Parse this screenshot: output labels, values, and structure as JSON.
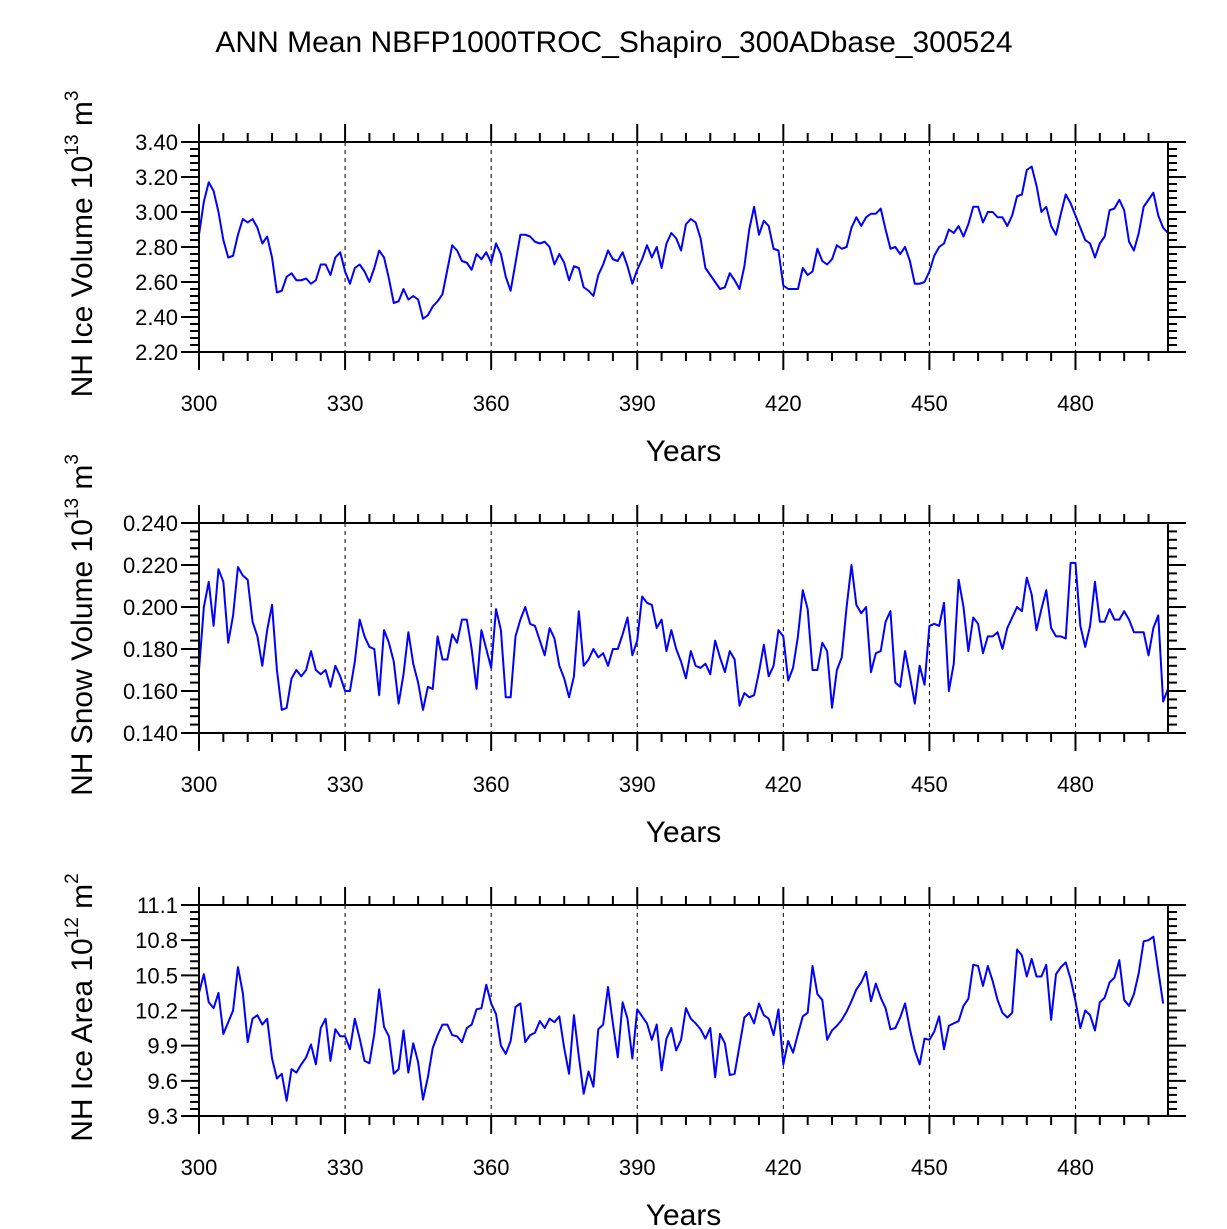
{
  "title": "ANN Mean NBFP1000TROC_Shapiro_300ADbase_300524",
  "colors": {
    "series": "#0000ff",
    "axis": "#000000",
    "grid": "#000000"
  },
  "chart_data": [
    {
      "type": "line",
      "ylabel": "NH Ice Volume 10",
      "ylabel_sup": "13",
      "ylabel_unit": " m",
      "ylabel_unit_sup": "3",
      "xlabel": "Years",
      "xlim": [
        300,
        499
      ],
      "ylim": [
        2.2,
        3.4
      ],
      "xticks": [
        300,
        330,
        360,
        390,
        420,
        450,
        480
      ],
      "xtick_labels": [
        "300",
        "330",
        "360",
        "390",
        "420",
        "450",
        "480"
      ],
      "yticks": [
        2.2,
        2.4,
        2.6,
        2.8,
        3.0,
        3.2,
        3.4
      ],
      "ytick_labels": [
        "2.20",
        "2.40",
        "2.60",
        "2.80",
        "3.00",
        "3.20",
        "3.40"
      ],
      "grid": "vertical dashed at major x ticks",
      "x_start": 300,
      "series": [
        {
          "values": [
            2.87,
            3.06,
            3.17,
            3.12,
            3.0,
            2.84,
            2.74,
            2.75,
            2.87,
            2.96,
            2.94,
            2.96,
            2.91,
            2.82,
            2.86,
            2.74,
            2.54,
            2.55,
            2.63,
            2.65,
            2.61,
            2.61,
            2.62,
            2.59,
            2.61,
            2.7,
            2.7,
            2.64,
            2.74,
            2.77,
            2.66,
            2.59,
            2.68,
            2.7,
            2.66,
            2.6,
            2.68,
            2.78,
            2.74,
            2.62,
            2.48,
            2.49,
            2.56,
            2.5,
            2.52,
            2.5,
            2.39,
            2.41,
            2.46,
            2.49,
            2.53,
            2.67,
            2.81,
            2.78,
            2.72,
            2.71,
            2.67,
            2.76,
            2.73,
            2.77,
            2.71,
            2.82,
            2.76,
            2.63,
            2.55,
            2.71,
            2.87,
            2.87,
            2.86,
            2.83,
            2.82,
            2.83,
            2.8,
            2.7,
            2.76,
            2.71,
            2.61,
            2.69,
            2.68,
            2.57,
            2.55,
            2.52,
            2.64,
            2.7,
            2.78,
            2.73,
            2.72,
            2.77,
            2.69,
            2.59,
            2.67,
            2.73,
            2.81,
            2.74,
            2.8,
            2.68,
            2.82,
            2.88,
            2.85,
            2.78,
            2.93,
            2.96,
            2.94,
            2.85,
            2.68,
            2.64,
            2.6,
            2.56,
            2.57,
            2.65,
            2.61,
            2.56,
            2.69,
            2.9,
            3.03,
            2.87,
            2.95,
            2.92,
            2.79,
            2.78,
            2.58,
            2.56,
            2.56,
            2.56,
            2.68,
            2.64,
            2.66,
            2.79,
            2.72,
            2.7,
            2.73,
            2.81,
            2.79,
            2.8,
            2.91,
            2.97,
            2.92,
            2.97,
            2.99,
            2.99,
            3.02,
            2.9,
            2.79,
            2.8,
            2.76,
            2.8,
            2.72,
            2.59,
            2.59,
            2.6,
            2.66,
            2.75,
            2.8,
            2.82,
            2.9,
            2.88,
            2.92,
            2.86,
            2.93,
            3.03,
            3.03,
            2.94,
            3.0,
            3.0,
            2.97,
            2.97,
            2.92,
            2.98,
            3.09,
            3.1,
            3.24,
            3.26,
            3.15,
            3.0,
            3.03,
            2.92,
            2.87,
            2.99,
            3.1,
            3.05,
            2.98,
            2.91,
            2.84,
            2.82,
            2.74,
            2.82,
            2.86,
            3.01,
            3.02,
            3.07,
            3.01,
            2.83,
            2.78,
            2.88,
            3.03,
            3.07,
            3.11,
            2.98,
            2.91,
            2.88
          ]
        }
      ]
    },
    {
      "type": "line",
      "ylabel": "NH Snow Volume 10",
      "ylabel_sup": "13",
      "ylabel_unit": " m",
      "ylabel_unit_sup": "3",
      "xlabel": "Years",
      "xlim": [
        300,
        499
      ],
      "ylim": [
        0.14,
        0.24
      ],
      "xticks": [
        300,
        330,
        360,
        390,
        420,
        450,
        480
      ],
      "xtick_labels": [
        "300",
        "330",
        "360",
        "390",
        "420",
        "450",
        "480"
      ],
      "yticks": [
        0.14,
        0.16,
        0.18,
        0.2,
        0.22,
        0.24
      ],
      "ytick_labels": [
        "0.140",
        "0.160",
        "0.180",
        "0.200",
        "0.220",
        "0.240"
      ],
      "grid": "vertical dashed at major x ticks",
      "x_start": 300,
      "series": [
        {
          "values": [
            0.17,
            0.2,
            0.212,
            0.191,
            0.218,
            0.212,
            0.183,
            0.196,
            0.219,
            0.215,
            0.213,
            0.193,
            0.186,
            0.172,
            0.189,
            0.201,
            0.17,
            0.151,
            0.152,
            0.166,
            0.17,
            0.167,
            0.17,
            0.179,
            0.17,
            0.168,
            0.17,
            0.162,
            0.172,
            0.167,
            0.16,
            0.16,
            0.174,
            0.194,
            0.186,
            0.181,
            0.18,
            0.158,
            0.189,
            0.183,
            0.174,
            0.154,
            0.168,
            0.188,
            0.173,
            0.164,
            0.151,
            0.162,
            0.161,
            0.186,
            0.175,
            0.175,
            0.187,
            0.183,
            0.194,
            0.194,
            0.18,
            0.161,
            0.189,
            0.18,
            0.171,
            0.199,
            0.189,
            0.157,
            0.157,
            0.186,
            0.194,
            0.2,
            0.192,
            0.191,
            0.184,
            0.177,
            0.19,
            0.185,
            0.172,
            0.166,
            0.157,
            0.167,
            0.198,
            0.172,
            0.175,
            0.18,
            0.176,
            0.178,
            0.172,
            0.18,
            0.18,
            0.187,
            0.195,
            0.177,
            0.184,
            0.205,
            0.202,
            0.201,
            0.19,
            0.194,
            0.179,
            0.189,
            0.18,
            0.174,
            0.166,
            0.179,
            0.172,
            0.171,
            0.173,
            0.168,
            0.184,
            0.176,
            0.169,
            0.179,
            0.175,
            0.153,
            0.159,
            0.157,
            0.158,
            0.169,
            0.182,
            0.167,
            0.172,
            0.189,
            0.186,
            0.165,
            0.171,
            0.186,
            0.208,
            0.199,
            0.17,
            0.17,
            0.183,
            0.179,
            0.152,
            0.17,
            0.176,
            0.2,
            0.22,
            0.201,
            0.197,
            0.2,
            0.169,
            0.178,
            0.179,
            0.193,
            0.198,
            0.164,
            0.162,
            0.179,
            0.167,
            0.154,
            0.172,
            0.163,
            0.191,
            0.192,
            0.191,
            0.202,
            0.16,
            0.173,
            0.213,
            0.2,
            0.179,
            0.195,
            0.192,
            0.178,
            0.186,
            0.186,
            0.188,
            0.18,
            0.19,
            0.195,
            0.2,
            0.198,
            0.214,
            0.206,
            0.189,
            0.199,
            0.208,
            0.19,
            0.186,
            0.186,
            0.185,
            0.221,
            0.221,
            0.191,
            0.181,
            0.191,
            0.212,
            0.193,
            0.193,
            0.199,
            0.194,
            0.194,
            0.198,
            0.194,
            0.188,
            0.188,
            0.188,
            0.177,
            0.19,
            0.196,
            0.155,
            0.161
          ]
        }
      ]
    },
    {
      "type": "line",
      "ylabel": "NH Ice Area 10",
      "ylabel_sup": "12",
      "ylabel_unit": " m",
      "ylabel_unit_sup": "2",
      "xlabel": "Years",
      "xlim": [
        300,
        499
      ],
      "ylim": [
        9.3,
        11.1
      ],
      "xticks": [
        300,
        330,
        360,
        390,
        420,
        450,
        480
      ],
      "xtick_labels": [
        "300",
        "330",
        "360",
        "390",
        "420",
        "450",
        "480"
      ],
      "yticks": [
        9.3,
        9.6,
        9.9,
        10.2,
        10.5,
        10.8,
        11.1
      ],
      "ytick_labels": [
        "9.3",
        "9.6",
        "9.9",
        "10.2",
        "10.5",
        "10.8",
        "11.1"
      ],
      "grid": "vertical dashed at major x ticks",
      "x_start": 300,
      "series": [
        {
          "values": [
            10.35,
            10.51,
            10.27,
            10.22,
            10.35,
            10.0,
            10.1,
            10.2,
            10.57,
            10.35,
            9.93,
            10.13,
            10.16,
            10.08,
            10.13,
            9.79,
            9.62,
            9.66,
            9.43,
            9.7,
            9.67,
            9.74,
            9.8,
            9.91,
            9.74,
            10.05,
            10.13,
            9.77,
            10.04,
            9.98,
            9.98,
            9.87,
            10.13,
            9.96,
            9.77,
            9.75,
            10.0,
            10.38,
            10.06,
            9.98,
            9.66,
            9.7,
            10.03,
            9.67,
            9.92,
            9.76,
            9.44,
            9.63,
            9.88,
            9.99,
            10.08,
            10.08,
            9.99,
            9.98,
            9.93,
            10.05,
            10.08,
            10.21,
            10.22,
            10.42,
            10.26,
            10.17,
            9.9,
            9.83,
            9.94,
            10.23,
            10.26,
            9.93,
            9.99,
            10.01,
            10.11,
            10.05,
            10.13,
            10.1,
            10.15,
            9.88,
            9.66,
            10.16,
            9.81,
            9.49,
            9.68,
            9.55,
            10.04,
            10.08,
            10.4,
            10.09,
            9.8,
            10.27,
            10.13,
            9.79,
            10.21,
            10.15,
            10.09,
            9.95,
            10.08,
            9.69,
            9.96,
            10.05,
            9.86,
            9.95,
            10.22,
            10.13,
            10.09,
            10.04,
            9.96,
            10.05,
            9.63,
            10.0,
            9.92,
            9.65,
            9.66,
            9.9,
            10.14,
            10.18,
            10.09,
            10.26,
            10.16,
            10.13,
            9.99,
            10.21,
            9.74,
            9.94,
            9.84,
            10.0,
            10.15,
            10.18,
            10.58,
            10.34,
            10.29,
            9.95,
            10.03,
            10.07,
            10.12,
            10.19,
            10.28,
            10.38,
            10.44,
            10.53,
            10.28,
            10.43,
            10.31,
            10.22,
            10.04,
            10.05,
            10.14,
            10.26,
            10.04,
            9.86,
            9.74,
            9.96,
            9.95,
            10.02,
            10.15,
            9.87,
            10.07,
            10.09,
            10.11,
            10.24,
            10.3,
            10.59,
            10.58,
            10.41,
            10.58,
            10.45,
            10.29,
            10.18,
            10.14,
            10.18,
            10.72,
            10.67,
            10.49,
            10.64,
            10.49,
            10.49,
            10.59,
            10.12,
            10.51,
            10.57,
            10.61,
            10.47,
            10.28,
            10.05,
            10.2,
            10.16,
            10.03,
            10.27,
            10.31,
            10.44,
            10.48,
            10.63,
            10.29,
            10.24,
            10.34,
            10.52,
            10.79,
            10.8,
            10.83,
            10.54,
            10.26
          ]
        }
      ]
    }
  ]
}
